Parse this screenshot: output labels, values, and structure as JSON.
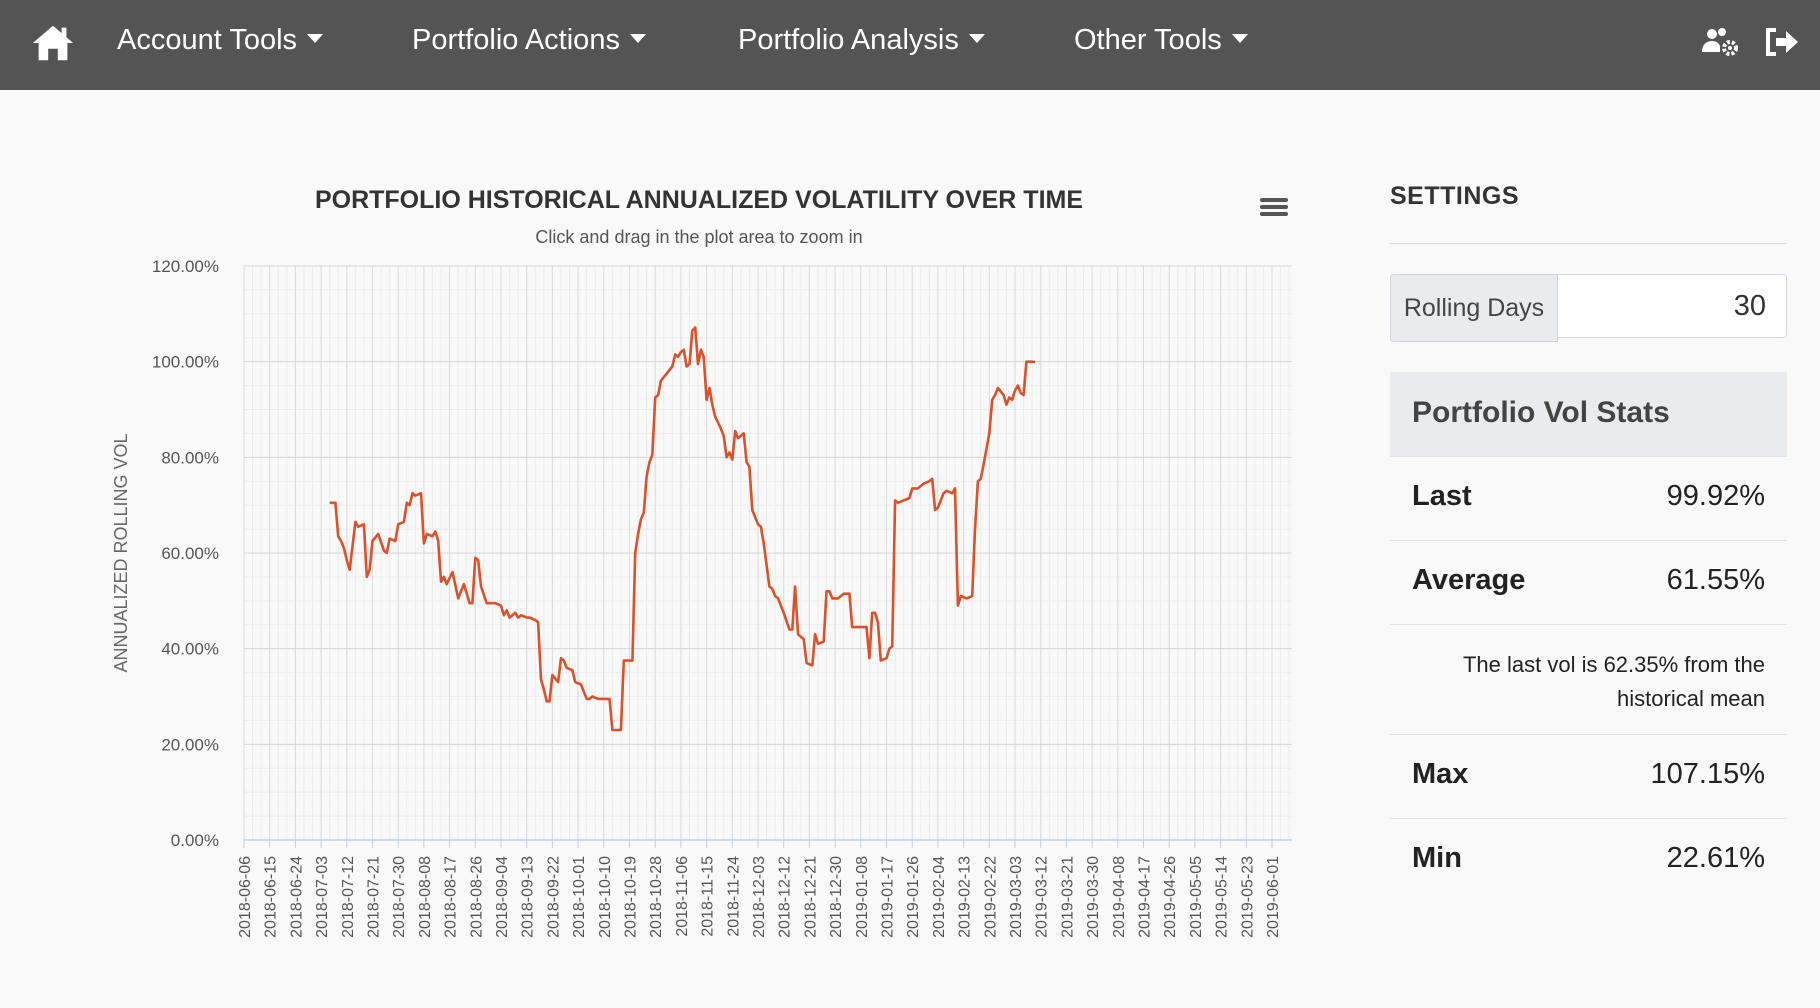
{
  "nav": {
    "items": [
      {
        "label": "Account Tools"
      },
      {
        "label": "Portfolio Actions"
      },
      {
        "label": "Portfolio Analysis"
      },
      {
        "label": "Other Tools"
      }
    ],
    "icons": [
      "home-icon",
      "users-cog-icon",
      "sign-out-icon"
    ],
    "background": "#545454"
  },
  "settings": {
    "title": "SETTINGS",
    "rolling_label": "Rolling Days",
    "rolling_value": "30",
    "stats_title": "Portfolio Vol Stats",
    "last_label": "Last",
    "last_value": "99.92%",
    "avg_label": "Average",
    "avg_value": "61.55%",
    "note": "The last vol is 62.35% from the historical mean",
    "max_label": "Max",
    "max_value": "107.15%",
    "min_label": "Min",
    "min_value": "22.61%"
  },
  "chart_data": {
    "type": "line",
    "title": "PORTFOLIO HISTORICAL ANNUALIZED VOLATILITY OVER TIME",
    "subtitle": "Click and drag in the plot area to zoom in",
    "xlabel": "",
    "ylabel": "ANNUALIZED ROLLING VOL",
    "ylim": [
      0,
      120
    ],
    "yticks": [
      "0.00%",
      "20.00%",
      "40.00%",
      "60.00%",
      "80.00%",
      "100.00%",
      "120.00%"
    ],
    "xticks": [
      "2018-06-06",
      "2018-06-15",
      "2018-06-24",
      "2018-07-03",
      "2018-07-12",
      "2018-07-21",
      "2018-07-30",
      "2018-08-08",
      "2018-08-17",
      "2018-08-26",
      "2018-09-04",
      "2018-09-13",
      "2018-09-22",
      "2018-10-01",
      "2018-10-10",
      "2018-10-19",
      "2018-10-28",
      "2018-11-06",
      "2018-11-15",
      "2018-11-24",
      "2018-12-03",
      "2018-12-12",
      "2018-12-21",
      "2018-12-30",
      "2019-01-08",
      "2019-01-17",
      "2019-01-26",
      "2019-02-04",
      "2019-02-13",
      "2019-02-22",
      "2019-03-03",
      "2019-03-12",
      "2019-03-21",
      "2019-03-30",
      "2019-04-08",
      "2019-04-17",
      "2019-04-26",
      "2019-05-05",
      "2019-05-14",
      "2019-05-23",
      "2019-06-01"
    ],
    "x_start": "2018-06-06",
    "x_end": "2019-06-08",
    "grid": true,
    "line_color": "#d9522c",
    "series": [
      {
        "points": [
          [
            "2018-07-06",
            70.5
          ],
          [
            "2018-07-08",
            70.5
          ],
          [
            "2018-07-09",
            63.5
          ],
          [
            "2018-07-10",
            62.5
          ],
          [
            "2018-07-11",
            61
          ],
          [
            "2018-07-12",
            58.5
          ],
          [
            "2018-07-13",
            56.5
          ],
          [
            "2018-07-15",
            66.5
          ],
          [
            "2018-07-16",
            65.5
          ],
          [
            "2018-07-18",
            66
          ],
          [
            "2018-07-19",
            55
          ],
          [
            "2018-07-20",
            56.5
          ],
          [
            "2018-07-21",
            62.5
          ],
          [
            "2018-07-23",
            64
          ],
          [
            "2018-07-25",
            60.5
          ],
          [
            "2018-07-26",
            60
          ],
          [
            "2018-07-27",
            63
          ],
          [
            "2018-07-29",
            62.5
          ],
          [
            "2018-07-30",
            66
          ],
          [
            "2018-08-01",
            66.5
          ],
          [
            "2018-08-02",
            70.5
          ],
          [
            "2018-08-03",
            70
          ],
          [
            "2018-08-04",
            72.5
          ],
          [
            "2018-08-05",
            72
          ],
          [
            "2018-08-07",
            72.5
          ],
          [
            "2018-08-08",
            62
          ],
          [
            "2018-08-09",
            64
          ],
          [
            "2018-08-11",
            63.5
          ],
          [
            "2018-08-12",
            64.5
          ],
          [
            "2018-08-13",
            62.5
          ],
          [
            "2018-08-14",
            54
          ],
          [
            "2018-08-15",
            55
          ],
          [
            "2018-08-16",
            53.5
          ],
          [
            "2018-08-18",
            56
          ],
          [
            "2018-08-20",
            50.5
          ],
          [
            "2018-08-22",
            53.5
          ],
          [
            "2018-08-24",
            49.5
          ],
          [
            "2018-08-25",
            49.5
          ],
          [
            "2018-08-26",
            59
          ],
          [
            "2018-08-27",
            58.5
          ],
          [
            "2018-08-28",
            53
          ],
          [
            "2018-08-30",
            49.5
          ],
          [
            "2018-09-02",
            49.5
          ],
          [
            "2018-09-04",
            49
          ],
          [
            "2018-09-05",
            47
          ],
          [
            "2018-09-06",
            48
          ],
          [
            "2018-09-07",
            46.5
          ],
          [
            "2018-09-09",
            47.5
          ],
          [
            "2018-09-10",
            46.5
          ],
          [
            "2018-09-11",
            47
          ],
          [
            "2018-09-13",
            46.5
          ],
          [
            "2018-09-14",
            46.5
          ],
          [
            "2018-09-16",
            46
          ],
          [
            "2018-09-17",
            45.5
          ],
          [
            "2018-09-18",
            33.5
          ],
          [
            "2018-09-19",
            31.5
          ],
          [
            "2018-09-20",
            29
          ],
          [
            "2018-09-21",
            29
          ],
          [
            "2018-09-22",
            34.5
          ],
          [
            "2018-09-24",
            33
          ],
          [
            "2018-09-25",
            38
          ],
          [
            "2018-09-26",
            37.5
          ],
          [
            "2018-09-27",
            36
          ],
          [
            "2018-09-29",
            35.5
          ],
          [
            "2018-09-30",
            33
          ],
          [
            "2018-10-02",
            32.5
          ],
          [
            "2018-10-03",
            31
          ],
          [
            "2018-10-04",
            29.5
          ],
          [
            "2018-10-05",
            29.5
          ],
          [
            "2018-10-06",
            30
          ],
          [
            "2018-10-08",
            29.5
          ],
          [
            "2018-10-12",
            29.5
          ],
          [
            "2018-10-13",
            23
          ],
          [
            "2018-10-16",
            23
          ],
          [
            "2018-10-17",
            37.5
          ],
          [
            "2018-10-20",
            37.5
          ],
          [
            "2018-10-21",
            60
          ],
          [
            "2018-10-22",
            64
          ],
          [
            "2018-10-23",
            67
          ],
          [
            "2018-10-24",
            68.5
          ],
          [
            "2018-10-25",
            76
          ],
          [
            "2018-10-26",
            79
          ],
          [
            "2018-10-27",
            80.5
          ],
          [
            "2018-10-28",
            92.5
          ],
          [
            "2018-10-29",
            93
          ],
          [
            "2018-10-30",
            96
          ],
          [
            "2018-11-01",
            97.5
          ],
          [
            "2018-11-03",
            99
          ],
          [
            "2018-11-04",
            101.5
          ],
          [
            "2018-11-05",
            101
          ],
          [
            "2018-11-06",
            102
          ],
          [
            "2018-11-07",
            102.5
          ],
          [
            "2018-11-08",
            99
          ],
          [
            "2018-11-09",
            99.5
          ],
          [
            "2018-11-10",
            106.5
          ],
          [
            "2018-11-11",
            107.15
          ],
          [
            "2018-11-12",
            99.5
          ],
          [
            "2018-11-13",
            102.5
          ],
          [
            "2018-11-14",
            101
          ],
          [
            "2018-11-15",
            92
          ],
          [
            "2018-11-16",
            94.5
          ],
          [
            "2018-11-17",
            91
          ],
          [
            "2018-11-18",
            88.5
          ],
          [
            "2018-11-20",
            86
          ],
          [
            "2018-11-21",
            84.5
          ],
          [
            "2018-11-22",
            80
          ],
          [
            "2018-11-23",
            81
          ],
          [
            "2018-11-24",
            79.5
          ],
          [
            "2018-11-25",
            85.5
          ],
          [
            "2018-11-26",
            84
          ],
          [
            "2018-11-28",
            85
          ],
          [
            "2018-11-29",
            79
          ],
          [
            "2018-11-30",
            78
          ],
          [
            "2018-12-01",
            69
          ],
          [
            "2018-12-03",
            66
          ],
          [
            "2018-12-04",
            65.5
          ],
          [
            "2018-12-05",
            62
          ],
          [
            "2018-12-07",
            53
          ],
          [
            "2018-12-08",
            52.5
          ],
          [
            "2018-12-09",
            51
          ],
          [
            "2018-12-10",
            50.5
          ],
          [
            "2018-12-12",
            47.5
          ],
          [
            "2018-12-14",
            44
          ],
          [
            "2018-12-15",
            44
          ],
          [
            "2018-12-16",
            53
          ],
          [
            "2018-12-17",
            43
          ],
          [
            "2018-12-19",
            42
          ],
          [
            "2018-12-20",
            37
          ],
          [
            "2018-12-22",
            36.5
          ],
          [
            "2018-12-23",
            43
          ],
          [
            "2018-12-24",
            41
          ],
          [
            "2018-12-26",
            41.5
          ],
          [
            "2018-12-27",
            52
          ],
          [
            "2018-12-28",
            52
          ],
          [
            "2018-12-29",
            50.5
          ],
          [
            "2018-12-31",
            50.5
          ],
          [
            "2019-01-02",
            51.5
          ],
          [
            "2019-01-04",
            51.5
          ],
          [
            "2019-01-05",
            44.5
          ],
          [
            "2019-01-06",
            44.5
          ],
          [
            "2019-01-08",
            44.5
          ],
          [
            "2019-01-10",
            44.5
          ],
          [
            "2019-01-11",
            38
          ],
          [
            "2019-01-12",
            47.5
          ],
          [
            "2019-01-13",
            47.5
          ],
          [
            "2019-01-14",
            45.5
          ],
          [
            "2019-01-15",
            37.5
          ],
          [
            "2019-01-17",
            38
          ],
          [
            "2019-01-18",
            40
          ],
          [
            "2019-01-19",
            40.5
          ],
          [
            "2019-01-20",
            71
          ],
          [
            "2019-01-21",
            70.5
          ],
          [
            "2019-01-23",
            71
          ],
          [
            "2019-01-25",
            71.5
          ],
          [
            "2019-01-26",
            73.5
          ],
          [
            "2019-01-28",
            73.5
          ],
          [
            "2019-01-30",
            74.5
          ],
          [
            "2019-02-01",
            75
          ],
          [
            "2019-02-02",
            75.5
          ],
          [
            "2019-02-03",
            69
          ],
          [
            "2019-02-04",
            69.5
          ],
          [
            "2019-02-06",
            72.5
          ],
          [
            "2019-02-07",
            73
          ],
          [
            "2019-02-09",
            72.5
          ],
          [
            "2019-02-10",
            73.5
          ],
          [
            "2019-02-11",
            49
          ],
          [
            "2019-02-12",
            51
          ],
          [
            "2019-02-14",
            50.5
          ],
          [
            "2019-02-16",
            51
          ],
          [
            "2019-02-17",
            65
          ],
          [
            "2019-02-18",
            75
          ],
          [
            "2019-02-19",
            75.5
          ],
          [
            "2019-02-20",
            78.5
          ],
          [
            "2019-02-22",
            85
          ],
          [
            "2019-02-23",
            92
          ],
          [
            "2019-02-24",
            93
          ],
          [
            "2019-02-25",
            94.5
          ],
          [
            "2019-02-27",
            93
          ],
          [
            "2019-02-28",
            91
          ],
          [
            "2019-03-01",
            92.5
          ],
          [
            "2019-03-02",
            92
          ],
          [
            "2019-03-03",
            94
          ],
          [
            "2019-03-04",
            95
          ],
          [
            "2019-03-05",
            93.5
          ],
          [
            "2019-03-06",
            93
          ],
          [
            "2019-03-07",
            100
          ],
          [
            "2019-03-08",
            100
          ],
          [
            "2019-03-09",
            100
          ],
          [
            "2019-03-10",
            99.92
          ]
        ]
      }
    ]
  }
}
